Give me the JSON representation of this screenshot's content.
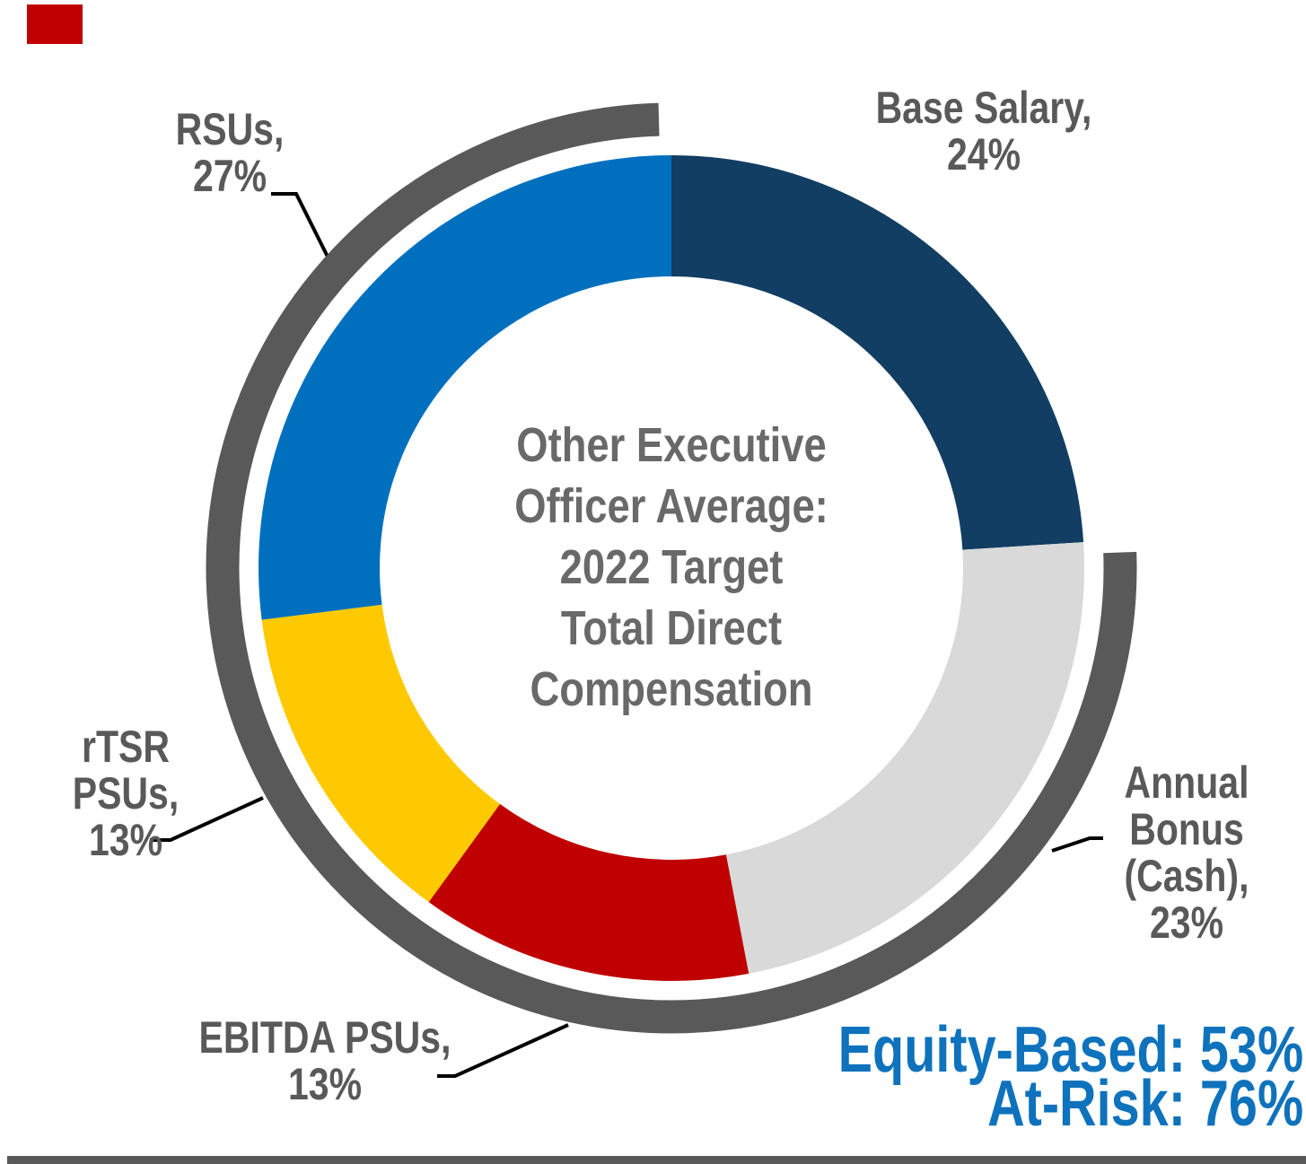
{
  "chart_data": {
    "type": "pie",
    "subtype": "donut",
    "title": "Other Executive Officer Average: 2022 Target Total Direct Compensation",
    "center_label": "Other Executive\nOfficer Average:\n2022 Target\nTotal Direct\nCompensation",
    "order": "clockwise from 12 o'clock",
    "legend_position": "callout labels around ring",
    "segments": [
      {
        "label": "Base Salary",
        "value": 24,
        "color": "#113E62",
        "callout": "Base Salary,\n24%"
      },
      {
        "label": "Annual Bonus (Cash)",
        "value": 23,
        "color": "#D9D9D9",
        "callout": "Annual\nBonus\n(Cash),\n23%"
      },
      {
        "label": "EBITDA PSUs",
        "value": 13,
        "color": "#C00000",
        "callout": "EBITDA PSUs,\n13%"
      },
      {
        "label": "rTSR PSUs",
        "value": 13,
        "color": "#FFC900",
        "callout": "rTSR\nPSUs,\n13%"
      },
      {
        "label": "RSUs",
        "value": 27,
        "color": "#0070BE",
        "callout": "RSUs,\n27%"
      }
    ],
    "outer_arc": {
      "meaning": "At-Risk portion of ring",
      "coverage_pct": 76,
      "color": "#595959"
    },
    "annotations": {
      "equity_based": "Equity-Based: 53%",
      "at_risk": "At-Risk: 76%",
      "color": "#0E72BC"
    }
  },
  "decorations": {
    "corner_tab_color": "#C00000",
    "footer_rule_color": "#595959",
    "leader_line_color": "#000000"
  }
}
